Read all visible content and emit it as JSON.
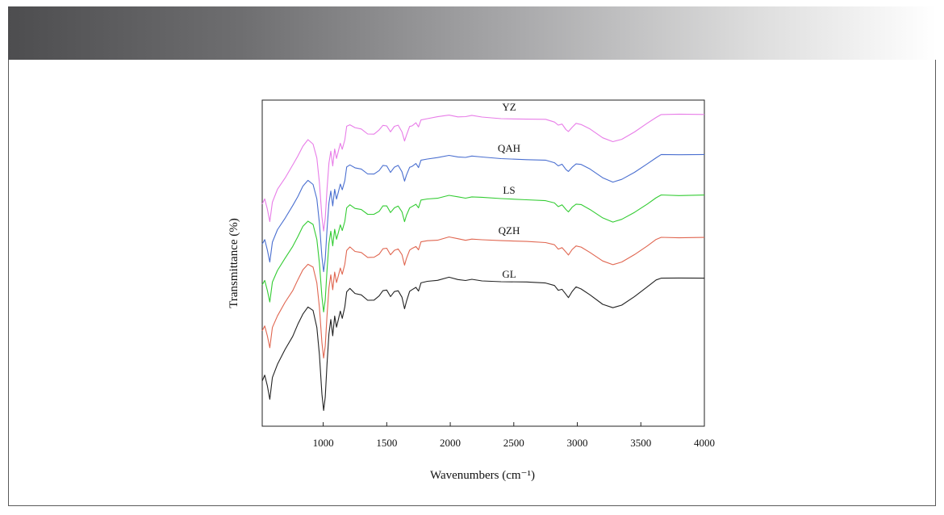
{
  "chart_data": {
    "type": "line",
    "xlabel": "Wavenumbers (cm⁻¹)",
    "ylabel": "Transmittance (%)",
    "xlim": [
      520,
      4000
    ],
    "x_ticks": [
      "1000",
      "1500",
      "2000",
      "2500",
      "3000",
      "3500",
      "4000"
    ],
    "y_ticks_shown": false,
    "grid": false,
    "legend": "labels above each curve",
    "series": [
      {
        "name": "YZ",
        "color": "#e87de8"
      },
      {
        "name": "QAH",
        "color": "#4a6fd0"
      },
      {
        "name": "LS",
        "color": "#33cc33"
      },
      {
        "name": "QZH",
        "color": "#e06650"
      },
      {
        "name": "GL",
        "color": "#222222"
      }
    ],
    "spectrum_shape": {
      "description_free_points": [
        [
          520,
          0.74
        ],
        [
          540,
          0.7
        ],
        [
          560,
          0.78
        ],
        [
          580,
          0.88
        ],
        [
          600,
          0.72
        ],
        [
          640,
          0.62
        ],
        [
          700,
          0.52
        ],
        [
          760,
          0.42
        ],
        [
          800,
          0.34
        ],
        [
          840,
          0.26
        ],
        [
          880,
          0.21
        ],
        [
          920,
          0.24
        ],
        [
          950,
          0.36
        ],
        [
          970,
          0.56
        ],
        [
          990,
          0.84
        ],
        [
          1003,
          0.96
        ],
        [
          1016,
          0.86
        ],
        [
          1030,
          0.62
        ],
        [
          1045,
          0.4
        ],
        [
          1060,
          0.3
        ],
        [
          1075,
          0.42
        ],
        [
          1090,
          0.28
        ],
        [
          1105,
          0.36
        ],
        [
          1120,
          0.3
        ],
        [
          1135,
          0.24
        ],
        [
          1150,
          0.29
        ],
        [
          1170,
          0.21
        ],
        [
          1185,
          0.1
        ],
        [
          1210,
          0.08
        ],
        [
          1250,
          0.11
        ],
        [
          1300,
          0.12
        ],
        [
          1350,
          0.16
        ],
        [
          1400,
          0.16
        ],
        [
          1440,
          0.13
        ],
        [
          1470,
          0.09
        ],
        [
          1500,
          0.09
        ],
        [
          1530,
          0.14
        ],
        [
          1560,
          0.1
        ],
        [
          1590,
          0.09
        ],
        [
          1620,
          0.14
        ],
        [
          1640,
          0.22
        ],
        [
          1655,
          0.17
        ],
        [
          1680,
          0.1
        ],
        [
          1700,
          0.09
        ],
        [
          1730,
          0.07
        ],
        [
          1750,
          0.1
        ],
        [
          1770,
          0.04
        ],
        [
          1820,
          0.03
        ],
        [
          1900,
          0.02
        ],
        [
          1990,
          0.0
        ],
        [
          2060,
          0.015
        ],
        [
          2120,
          0.02
        ],
        [
          2170,
          0.01
        ],
        [
          2250,
          0.02
        ],
        [
          2400,
          0.03
        ],
        [
          2600,
          0.035
        ],
        [
          2750,
          0.04
        ],
        [
          2820,
          0.06
        ],
        [
          2850,
          0.09
        ],
        [
          2880,
          0.08
        ],
        [
          2910,
          0.12
        ],
        [
          2930,
          0.14
        ],
        [
          2960,
          0.1
        ],
        [
          2990,
          0.07
        ],
        [
          3030,
          0.08
        ],
        [
          3100,
          0.12
        ],
        [
          3200,
          0.19
        ],
        [
          3280,
          0.22
        ],
        [
          3350,
          0.2
        ],
        [
          3450,
          0.14
        ],
        [
          3550,
          0.07
        ],
        [
          3620,
          0.02
        ],
        [
          3660,
          0.0
        ],
        [
          3800,
          0.0
        ],
        [
          4000,
          0.0
        ]
      ]
    }
  }
}
